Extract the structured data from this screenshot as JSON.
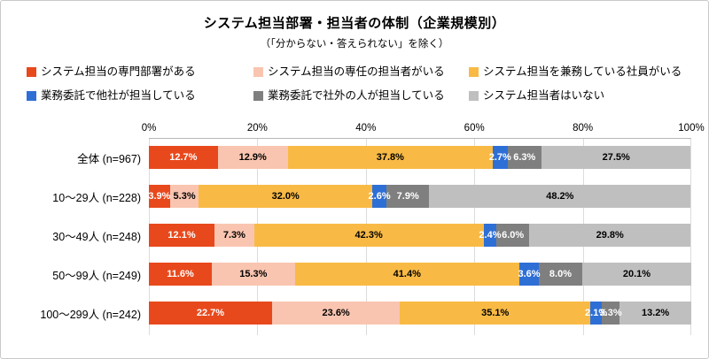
{
  "title": "システム担当部署・担当者の体制（企業規模別）",
  "subtitle": "（「分からない・答えられない」を除く）",
  "chart_data": {
    "type": "bar",
    "orientation": "horizontal",
    "stacked": true,
    "value_suffix": "%",
    "xlim": [
      0,
      100
    ],
    "x_ticks": [
      "0%",
      "20%",
      "40%",
      "60%",
      "80%",
      "100%"
    ],
    "grid": true,
    "legend_position": "top",
    "categories": [
      "全体 (n=967)",
      "10～29人 (n=228)",
      "30～49人 (n=248)",
      "50～99人 (n=249)",
      "100～299人 (n=242)"
    ],
    "series": [
      {
        "name": "システム担当の専門部署がある",
        "color": "#e8491c",
        "label_color": "#ffffff",
        "values": [
          12.7,
          3.9,
          12.1,
          11.6,
          22.7
        ]
      },
      {
        "name": "システム担当の専任の担当者がいる",
        "color": "#f9c5b0",
        "label_color": "#000000",
        "values": [
          12.9,
          5.3,
          7.3,
          15.3,
          23.6
        ]
      },
      {
        "name": "システム担当を兼務している社員がいる",
        "color": "#f8ba45",
        "label_color": "#000000",
        "values": [
          37.8,
          32.0,
          42.3,
          41.4,
          35.1
        ]
      },
      {
        "name": "業務委託で他社が担当している",
        "color": "#2e6fd6",
        "label_color": "#ffffff",
        "values": [
          2.7,
          2.6,
          2.4,
          3.6,
          2.1
        ]
      },
      {
        "name": "業務委託で社外の人が担当している",
        "color": "#7f7f7f",
        "label_color": "#ffffff",
        "values": [
          6.3,
          7.9,
          6.0,
          8.0,
          3.3
        ]
      },
      {
        "name": "システム担当者はいない",
        "color": "#bfbfbf",
        "label_color": "#000000",
        "values": [
          27.5,
          48.2,
          29.8,
          20.1,
          13.2
        ]
      }
    ]
  }
}
